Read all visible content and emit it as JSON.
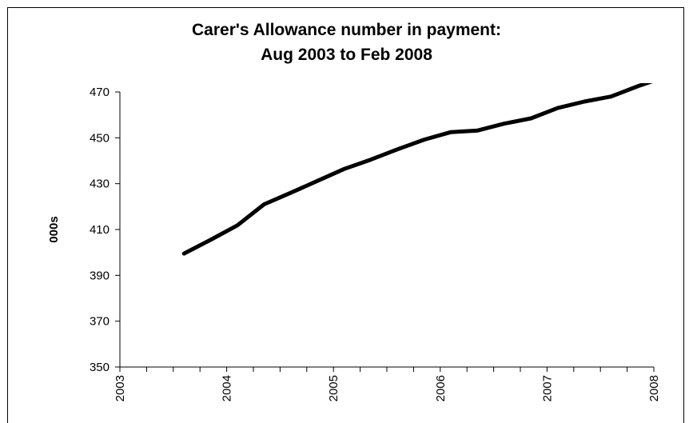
{
  "chart_data": {
    "type": "line",
    "title": "Carer's Allowance number in payment:",
    "subtitle": "Aug 2003 to Feb 2008",
    "ylabel": "000s",
    "xlabel": "",
    "ylim": [
      350,
      470
    ],
    "yticks": [
      350,
      370,
      390,
      410,
      430,
      450,
      470
    ],
    "xlim": [
      2003.0,
      2008.0
    ],
    "xticks": [
      "2003",
      "2004",
      "2005",
      "2006",
      "2007",
      "2008"
    ],
    "grid": false,
    "legend": "none",
    "series": [
      {
        "color": "#000000",
        "x": [
          2003.6,
          2003.85,
          2004.1,
          2004.35,
          2004.6,
          2004.85,
          2005.1,
          2005.35,
          2005.6,
          2005.85,
          2006.1,
          2006.35,
          2006.6,
          2006.85,
          2007.1,
          2007.35,
          2007.6,
          2007.85,
          2008.1
        ],
        "values": [
          399.5,
          405.5,
          411.8,
          421.0,
          426.0,
          431.2,
          436.4,
          440.5,
          445.0,
          449.2,
          452.5,
          453.2,
          456.2,
          458.5,
          463.0,
          465.8,
          468.0,
          472.5,
          476.5
        ]
      }
    ]
  }
}
